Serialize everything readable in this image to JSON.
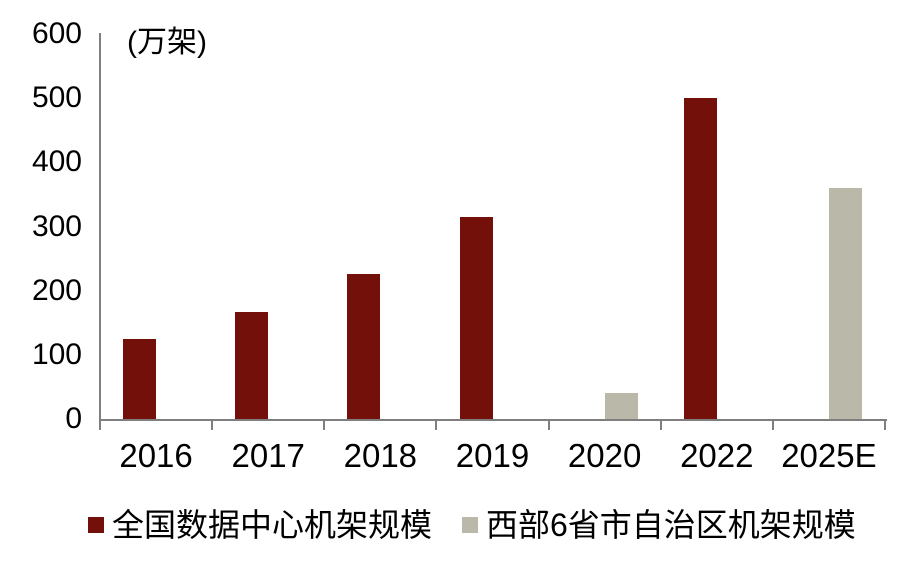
{
  "chart_data": {
    "type": "bar",
    "title": "",
    "unit_label": "(万架)",
    "categories": [
      "2016",
      "2017",
      "2018",
      "2019",
      "2020",
      "2022",
      "2025E"
    ],
    "series": [
      {
        "key": "national",
        "name": "全国数据中心机架规模",
        "color": "#731009",
        "values": [
          124,
          166,
          226,
          315,
          null,
          500,
          null
        ]
      },
      {
        "key": "western",
        "name": "西部6省市自治区机架规模",
        "color": "#B9B8A9",
        "values": [
          null,
          null,
          null,
          null,
          40,
          null,
          360
        ]
      }
    ],
    "y_ticks": [
      0,
      100,
      200,
      300,
      400,
      500,
      600
    ],
    "ylim": [
      0,
      600
    ],
    "xlabel": "",
    "ylabel": "",
    "grid": false,
    "legend_position": "bottom",
    "colors": {
      "axis": "#7F7F7F",
      "text": "#000000",
      "background": "#FFFFFF"
    }
  }
}
